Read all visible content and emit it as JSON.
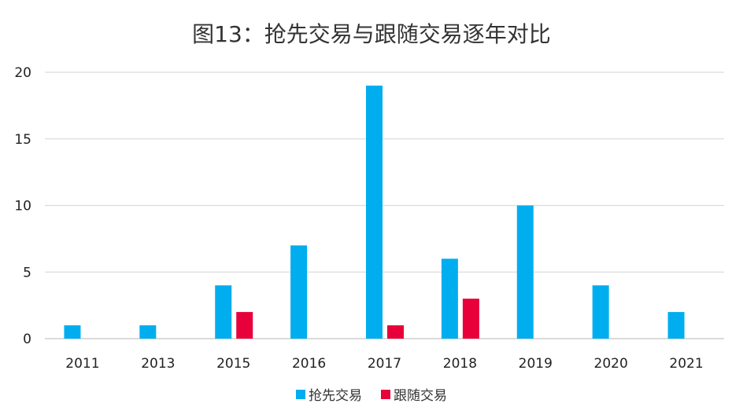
{
  "chart_data": {
    "type": "bar",
    "title": "图13：抢先交易与跟随交易逐年对比",
    "categories": [
      "2011",
      "2013",
      "2015",
      "2016",
      "2017",
      "2018",
      "2019",
      "2020",
      "2021"
    ],
    "series": [
      {
        "name": "抢先交易",
        "color": "#00AEEF",
        "values": [
          1,
          1,
          4,
          7,
          19,
          6,
          10,
          4,
          2
        ]
      },
      {
        "name": "跟随交易",
        "color": "#E8003A",
        "values": [
          0,
          0,
          2,
          0,
          1,
          3,
          0,
          0,
          0
        ]
      }
    ],
    "ylim": [
      0,
      20
    ],
    "yticks": [
      0,
      5,
      10,
      15,
      20
    ],
    "grid": true,
    "legend_position": "bottom"
  }
}
